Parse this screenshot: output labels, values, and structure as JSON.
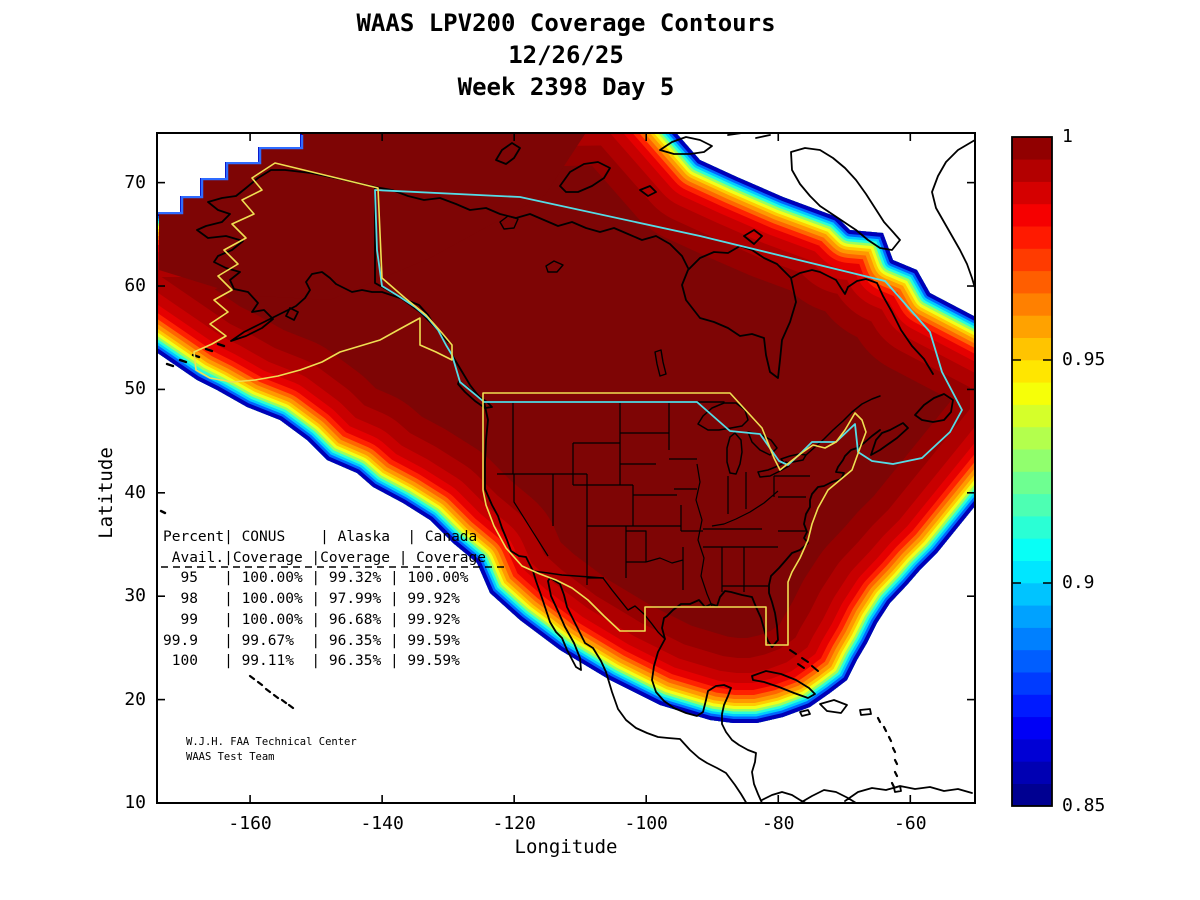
{
  "chart_data": {
    "type": "contour-map",
    "title_lines": [
      "WAAS LPV200 Coverage Contours",
      "12/26/25",
      "Week 2398 Day 5"
    ],
    "date": "12/26/25",
    "week": 2398,
    "day": 5,
    "axes": {
      "xlabel": "Longitude",
      "ylabel": "Latitude",
      "x_ticks": [
        -160,
        -140,
        -120,
        -100,
        -80,
        -60
      ],
      "y_ticks": [
        10,
        20,
        30,
        40,
        50,
        60,
        70
      ],
      "xlim": [
        -174.1,
        -50.2
      ],
      "ylim": [
        10,
        74.8
      ],
      "grid": false
    },
    "colorbar": {
      "min": 0.85,
      "max": 1,
      "ticks": [
        "1",
        "0.95",
        "0.9",
        "0.85"
      ],
      "tick_values": [
        1,
        0.95,
        0.9,
        0.85
      ],
      "n_bands": 30,
      "colors_bottom_to_top": [
        "#000091",
        "#0000B3",
        "#0000D5",
        "#0000F6",
        "#001AFF",
        "#003BFF",
        "#005EFF",
        "#0080FF",
        "#00A2FF",
        "#00C4FF",
        "#00E6FF",
        "#08FFF6",
        "#2AFFD5",
        "#4DFFB3",
        "#6EFF91",
        "#91FF6E",
        "#B3FF4D",
        "#D5FF2A",
        "#F6FF08",
        "#FFE600",
        "#FFC400",
        "#FFA200",
        "#FF8000",
        "#FF5E00",
        "#FF3B00",
        "#FF1A00",
        "#F60000",
        "#D50000",
        "#B30000",
        "#910000"
      ]
    },
    "coverage_table": {
      "header_lines": [
        "Percent| CONUS    | Alaska  | Canada",
        " Avail.|Coverage |Coverage | Coverage"
      ],
      "display_rows": [
        "  95   | 100.00% | 99.32% | 100.00%",
        "  98   | 100.00% | 97.99% | 99.92%",
        "  99   | 100.00% | 96.68% | 99.92%",
        "99.9   | 99.67%  | 96.35% | 99.59%",
        " 100   | 99.11%  | 96.35% | 99.59%"
      ],
      "rows": [
        {
          "percent_avail": "95",
          "conus": "100.00%",
          "alaska": "99.32%",
          "canada": "100.00%"
        },
        {
          "percent_avail": "98",
          "conus": "100.00%",
          "alaska": "97.99%",
          "canada": "99.92%"
        },
        {
          "percent_avail": "99",
          "conus": "100.00%",
          "alaska": "96.68%",
          "canada": "99.92%"
        },
        {
          "percent_avail": "99.9",
          "conus": "99.67%",
          "alaska": "96.35%",
          "canada": "99.59%"
        },
        {
          "percent_avail": "100",
          "conus": "99.11%",
          "alaska": "96.35%",
          "canada": "99.59%"
        }
      ]
    },
    "footnote_lines": [
      "W.J.H. FAA Technical Center",
      "WAAS Test Team"
    ],
    "map_colors": {
      "coverage_core": "#7E0505",
      "coastline": "#000000",
      "conus_alaska_boundary": "#EFDF52",
      "canada_boundary": "#55DCE6",
      "background": "#FFFFFF"
    }
  }
}
